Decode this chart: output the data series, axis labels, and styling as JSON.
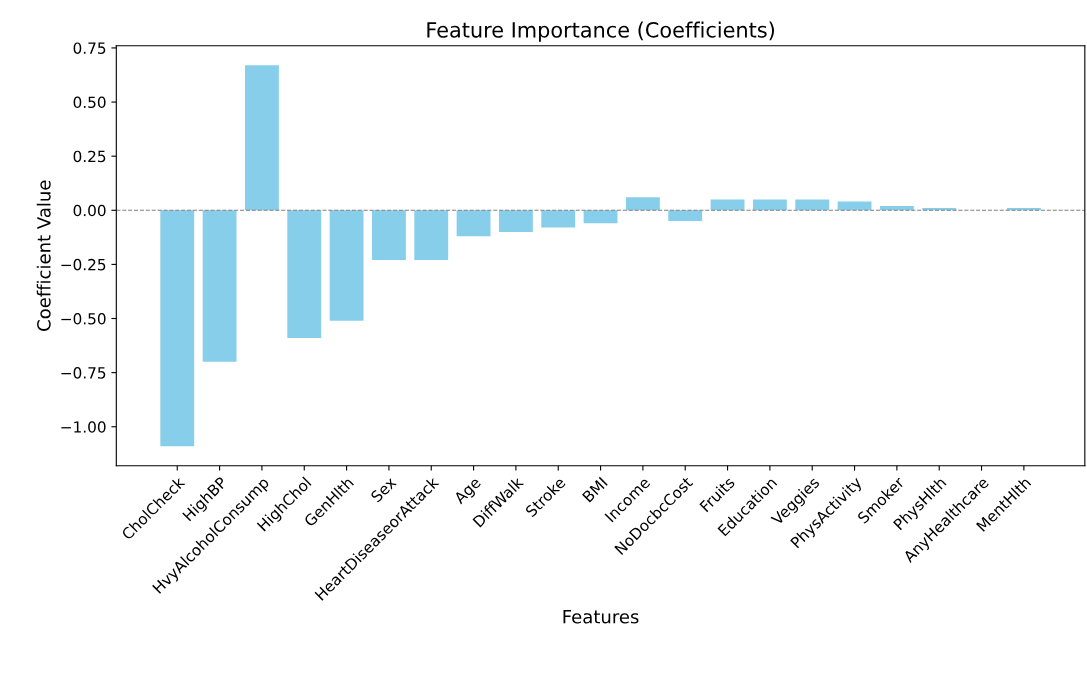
{
  "chart_data": {
    "type": "bar",
    "title": "Feature Importance (Coefficients)",
    "xlabel": "Features",
    "ylabel": "Coefficient Value",
    "categories": [
      "CholCheck",
      "HighBP",
      "HvyAlcoholConsump",
      "HighChol",
      "GenHlth",
      "Sex",
      "HeartDiseaseorAttack",
      "Age",
      "DiffWalk",
      "Stroke",
      "BMI",
      "Income",
      "NoDocbcCost",
      "Fruits",
      "Education",
      "Veggies",
      "PhysActivity",
      "Smoker",
      "PhysHlth",
      "AnyHealthcare",
      "MentHlth"
    ],
    "values": [
      -1.09,
      -0.7,
      0.67,
      -0.59,
      -0.51,
      -0.23,
      -0.23,
      -0.12,
      -0.1,
      -0.08,
      -0.06,
      0.06,
      -0.05,
      0.05,
      0.05,
      0.05,
      0.04,
      0.02,
      0.01,
      0.0,
      0.01
    ],
    "color": "#87ceeb",
    "ylim": [
      -1.18,
      0.76
    ],
    "yticks": [
      {
        "value": -1.0,
        "label": "−1.00"
      },
      {
        "value": -0.75,
        "label": "−0.75"
      },
      {
        "value": -0.5,
        "label": "−0.50"
      },
      {
        "value": -0.25,
        "label": "−0.25"
      },
      {
        "value": 0.0,
        "label": "0.00"
      },
      {
        "value": 0.25,
        "label": "0.25"
      },
      {
        "value": 0.5,
        "label": "0.50"
      },
      {
        "value": 0.75,
        "label": "0.75"
      }
    ],
    "ref_lines": [
      {
        "axis": "y",
        "value": 0,
        "label": null,
        "color": "#808080",
        "line_style": "dashed"
      }
    ],
    "grid": false,
    "legend": false
  }
}
